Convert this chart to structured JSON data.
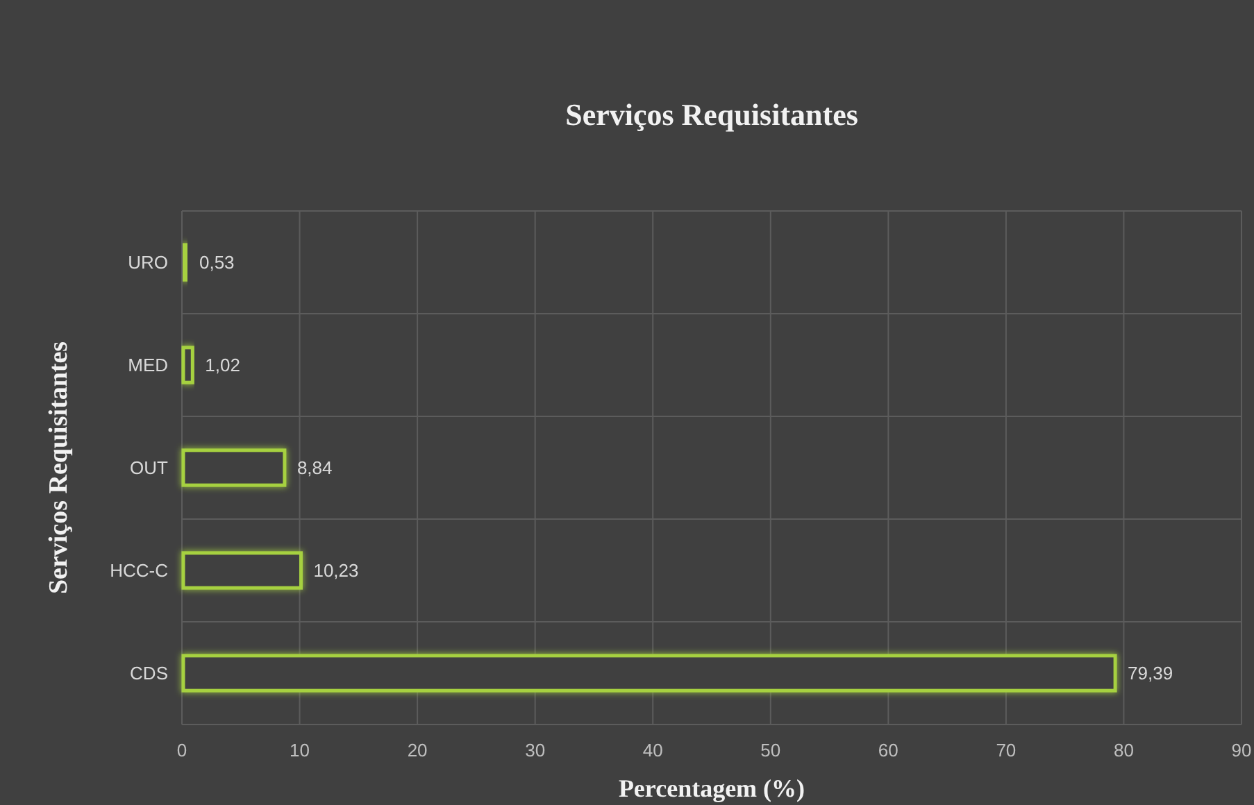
{
  "chart_data": {
    "type": "bar",
    "orientation": "horizontal",
    "title": "Serviços Requisitantes",
    "xlabel": "Percentagem (%)",
    "ylabel": "Serviços Requisitantes",
    "categories": [
      "URO",
      "MED",
      "OUT",
      "HCC-C",
      "CDS"
    ],
    "values": [
      0.53,
      1.02,
      8.84,
      10.23,
      79.39
    ],
    "value_labels": [
      "0,53",
      "1,02",
      "8,84",
      "10,23",
      "79,39"
    ],
    "color": "#a6d140",
    "xlim": [
      0,
      90
    ],
    "xticks": [
      0,
      10,
      20,
      30,
      40,
      50,
      60,
      70,
      80,
      90
    ],
    "grid": true
  }
}
